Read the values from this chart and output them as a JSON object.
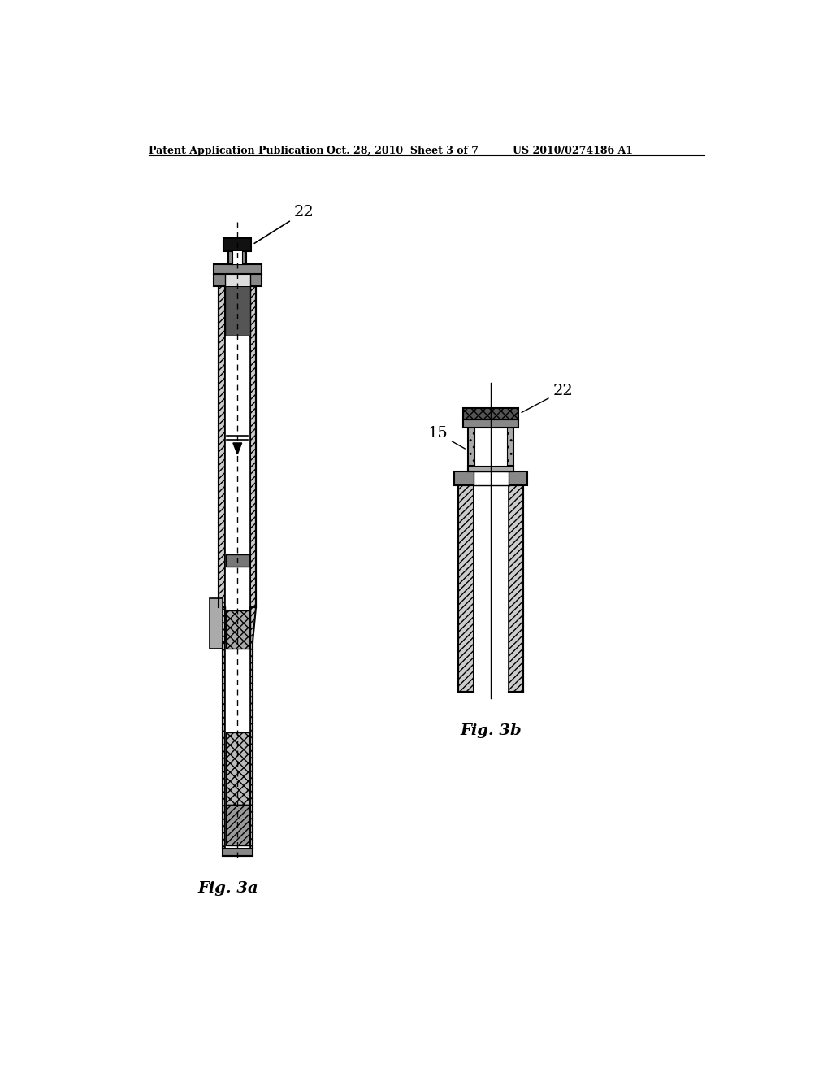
{
  "header_left": "Patent Application Publication",
  "header_mid": "Oct. 28, 2010  Sheet 3 of 7",
  "header_right": "US 2010/0274186 A1",
  "fig_a_label": "Fig. 3a",
  "fig_b_label": "Fig. 3b",
  "label_22_a": "22",
  "label_22_b": "22",
  "label_15": "15",
  "bg_color": "#ffffff",
  "line_color": "#000000",
  "dark_fill": "#222222",
  "medium_gray": "#888888",
  "light_gray": "#cccccc",
  "hatch_gray": "#aaaaaa"
}
